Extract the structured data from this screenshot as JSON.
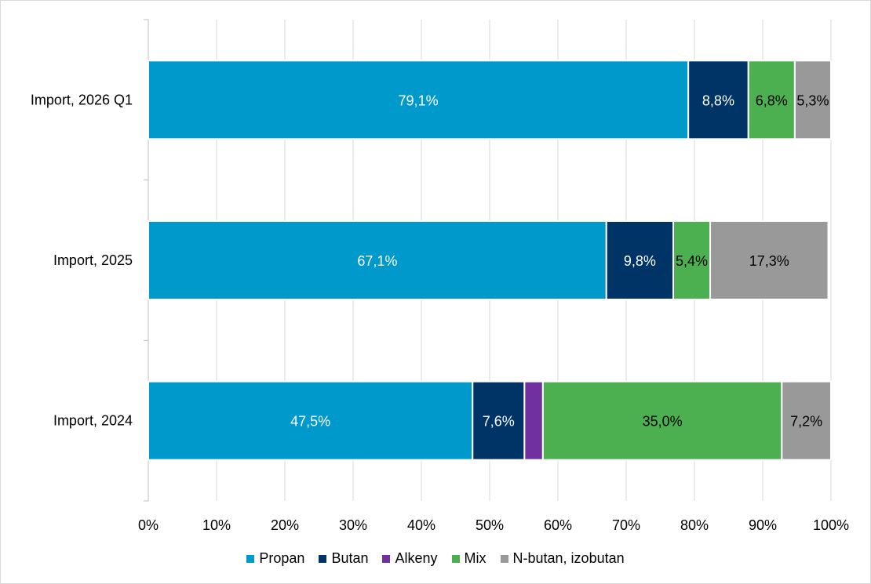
{
  "chart_data": {
    "type": "bar",
    "orientation": "horizontal",
    "stacked": "percent",
    "categories": [
      "Import, 2026 Q1",
      "Import, 2025",
      "Import, 2024"
    ],
    "series": [
      {
        "name": "Propan",
        "color": "#0099cc",
        "values": [
          79.1,
          67.1,
          47.5
        ],
        "labels": [
          "79,1%",
          "67,1%",
          "47,5%"
        ],
        "label_color": "#ffffff"
      },
      {
        "name": "Butan",
        "color": "#003366",
        "values": [
          8.8,
          9.8,
          7.6
        ],
        "labels": [
          "8,8%",
          "9,8%",
          "7,6%"
        ],
        "label_color": "#ffffff"
      },
      {
        "name": "Alkeny",
        "color": "#7030a0",
        "values": [
          0,
          0,
          2.7
        ],
        "labels": [
          "",
          "",
          ""
        ],
        "label_color": "#ffffff"
      },
      {
        "name": "Mix",
        "color": "#4caf50",
        "values": [
          6.8,
          5.4,
          35.0
        ],
        "labels": [
          "6,8%",
          "5,4%",
          "35,0%"
        ],
        "label_color": "#000000"
      },
      {
        "name": "N-butan, izobutan",
        "color": "#999999",
        "values": [
          5.3,
          17.3,
          7.2
        ],
        "labels": [
          "5,3%",
          "17,3%",
          "7,2%"
        ],
        "label_color": "#000000"
      }
    ],
    "x_ticks": [
      "0%",
      "10%",
      "20%",
      "30%",
      "40%",
      "50%",
      "60%",
      "70%",
      "80%",
      "90%",
      "100%"
    ],
    "xlim": [
      0,
      100
    ],
    "grid": true,
    "legend_position": "bottom"
  }
}
